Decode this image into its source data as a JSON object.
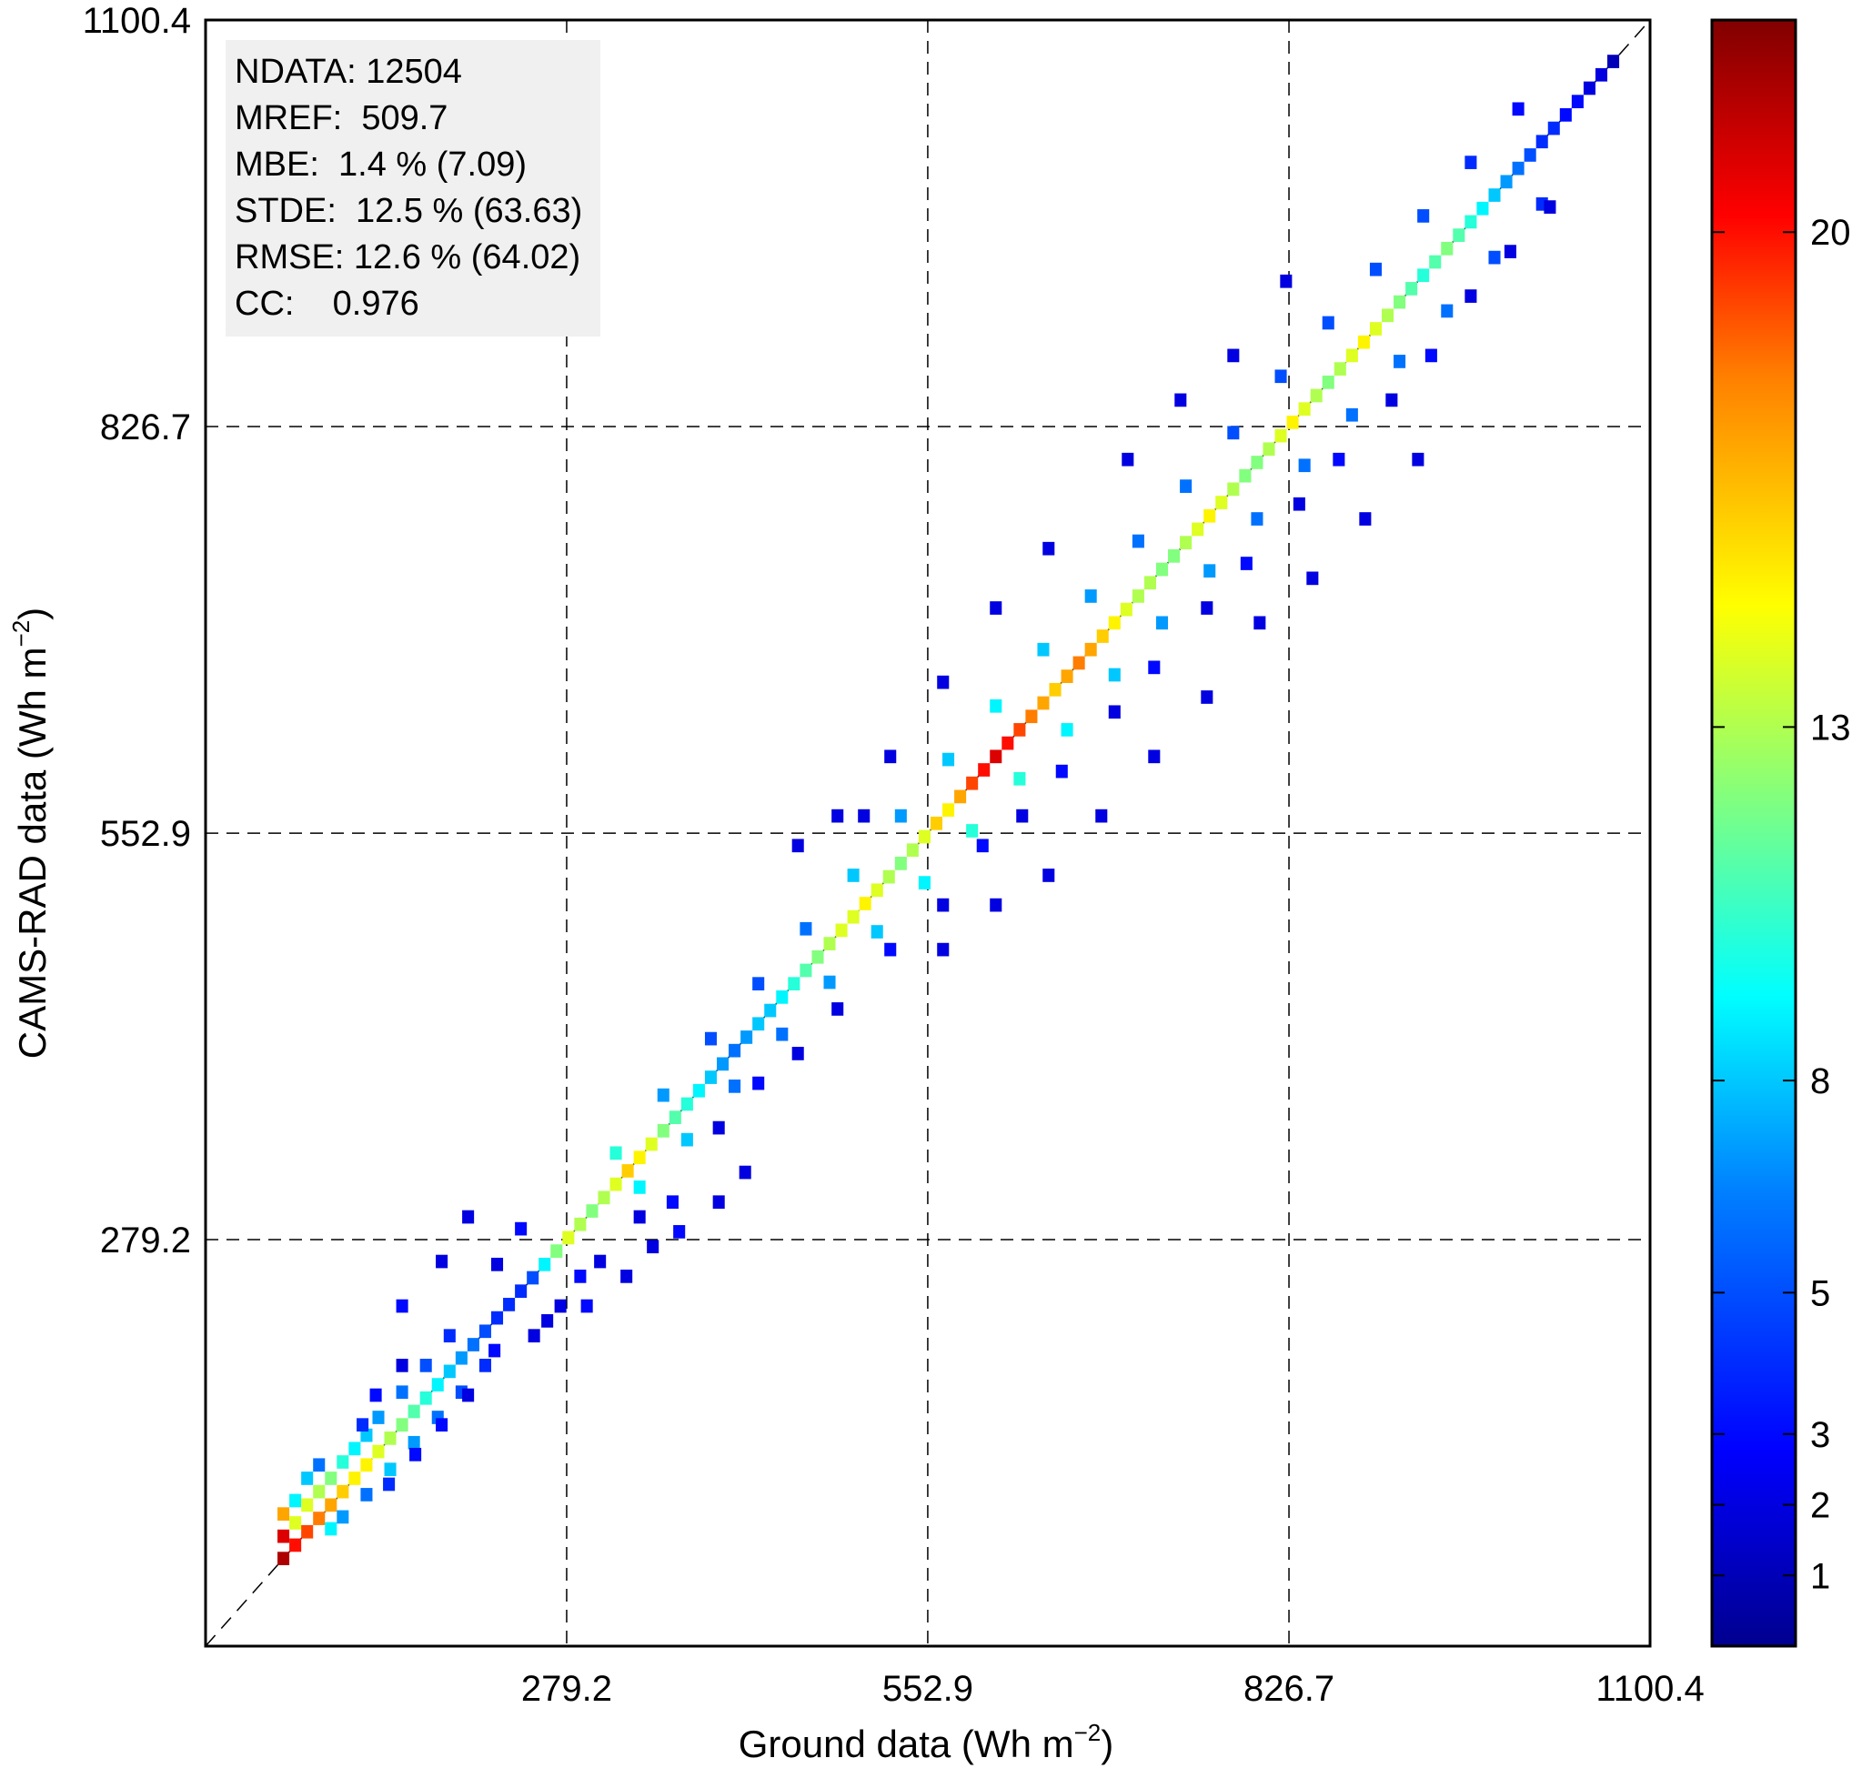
{
  "chart_data": {
    "type": "heatmap",
    "title": "",
    "xlabel_main": "Ground data (Wh m",
    "xlabel_sup": "−2",
    "xlabel_end": ")",
    "ylabel_main": "CAMS-RAD data  (Wh m",
    "ylabel_sup": "−2",
    "ylabel_end": ")",
    "xlim": [
      5.5,
      1100.4
    ],
    "ylim": [
      5.5,
      1100.4
    ],
    "x_ticks": [
      279.2,
      552.9,
      826.7,
      1100.4
    ],
    "x_tick_labels": [
      "279.2",
      "552.9",
      "826.7",
      "1100.4"
    ],
    "y_ticks": [
      279.2,
      552.9,
      826.7,
      1100.4
    ],
    "y_tick_labels": [
      "279.2",
      "552.9",
      "826.7",
      "1100.4"
    ],
    "grid": true,
    "grid_style": "dashed",
    "identity_line": true,
    "bin_width": 9.0,
    "stats": [
      "NDATA: 12504",
      "MREF:  509.7",
      "MBE:  1.4 % (7.09)",
      "STDE:  12.5 % (63.63)",
      "RMSE: 12.6 % (64.02)",
      "CC:    0.976"
    ],
    "colorbar": {
      "min": 0,
      "max": 23,
      "ticks": [
        1,
        2,
        3,
        5,
        8,
        13,
        20
      ],
      "tick_labels": [
        "1",
        "2",
        "3",
        "5",
        "8",
        "13",
        "20"
      ],
      "colors": [
        "#00008f",
        "#0000ff",
        "#0080ff",
        "#00ffff",
        "#80ff80",
        "#ffff00",
        "#ff8000",
        "#ff0000",
        "#800000"
      ]
    },
    "points": [
      [
        60,
        60,
        22
      ],
      [
        60,
        75,
        21
      ],
      [
        60,
        90,
        17
      ],
      [
        69,
        69,
        20
      ],
      [
        69,
        84,
        14
      ],
      [
        69,
        99,
        9
      ],
      [
        78,
        78,
        19
      ],
      [
        78,
        96,
        14
      ],
      [
        78,
        114,
        8
      ],
      [
        87,
        87,
        18
      ],
      [
        87,
        105,
        13
      ],
      [
        87,
        123,
        6
      ],
      [
        96,
        96,
        17
      ],
      [
        96,
        114,
        12
      ],
      [
        96,
        80,
        9
      ],
      [
        105,
        105,
        16
      ],
      [
        105,
        125,
        10
      ],
      [
        105,
        88,
        7
      ],
      [
        114,
        114,
        15
      ],
      [
        114,
        134,
        9
      ],
      [
        123,
        123,
        15
      ],
      [
        123,
        143,
        8
      ],
      [
        123,
        103,
        6
      ],
      [
        132,
        132,
        14
      ],
      [
        132,
        155,
        7
      ],
      [
        141,
        141,
        13
      ],
      [
        141,
        120,
        8
      ],
      [
        150,
        150,
        12
      ],
      [
        150,
        172,
        6
      ],
      [
        159,
        159,
        11
      ],
      [
        159,
        138,
        7
      ],
      [
        168,
        168,
        10
      ],
      [
        168,
        190,
        5
      ],
      [
        177,
        177,
        9
      ],
      [
        177,
        155,
        6
      ],
      [
        186,
        186,
        8
      ],
      [
        186,
        210,
        4
      ],
      [
        195,
        195,
        7
      ],
      [
        195,
        172,
        5
      ],
      [
        204,
        204,
        6
      ],
      [
        213,
        213,
        5
      ],
      [
        213,
        190,
        4
      ],
      [
        222,
        222,
        4
      ],
      [
        231,
        231,
        4
      ],
      [
        240,
        240,
        4
      ],
      [
        249,
        249,
        5
      ],
      [
        258,
        258,
        9
      ],
      [
        267,
        267,
        12
      ],
      [
        276,
        276,
        14
      ],
      [
        285,
        285,
        13
      ],
      [
        294,
        294,
        12
      ],
      [
        303,
        303,
        13
      ],
      [
        312,
        312,
        14
      ],
      [
        321,
        321,
        16
      ],
      [
        330,
        330,
        15
      ],
      [
        339,
        339,
        14
      ],
      [
        348,
        348,
        12
      ],
      [
        357,
        357,
        11
      ],
      [
        366,
        366,
        10
      ],
      [
        375,
        375,
        9
      ],
      [
        384,
        384,
        8
      ],
      [
        393,
        393,
        7
      ],
      [
        402,
        402,
        6
      ],
      [
        411,
        411,
        7
      ],
      [
        420,
        420,
        8
      ],
      [
        429,
        429,
        8
      ],
      [
        438,
        438,
        9
      ],
      [
        447,
        447,
        10
      ],
      [
        456,
        456,
        11
      ],
      [
        465,
        465,
        12
      ],
      [
        474,
        474,
        13
      ],
      [
        483,
        483,
        14
      ],
      [
        492,
        492,
        14
      ],
      [
        501,
        501,
        15
      ],
      [
        510,
        510,
        14
      ],
      [
        519,
        519,
        13
      ],
      [
        528,
        528,
        12
      ],
      [
        537,
        537,
        13
      ],
      [
        546,
        546,
        14
      ],
      [
        555,
        555,
        16
      ],
      [
        564,
        564,
        15
      ],
      [
        573,
        573,
        17
      ],
      [
        582,
        582,
        19
      ],
      [
        591,
        591,
        20
      ],
      [
        600,
        600,
        21
      ],
      [
        609,
        609,
        20
      ],
      [
        618,
        618,
        19
      ],
      [
        627,
        627,
        18
      ],
      [
        636,
        636,
        17
      ],
      [
        645,
        645,
        16
      ],
      [
        654,
        654,
        17
      ],
      [
        663,
        663,
        18
      ],
      [
        672,
        672,
        17
      ],
      [
        681,
        681,
        16
      ],
      [
        690,
        690,
        15
      ],
      [
        699,
        699,
        14
      ],
      [
        708,
        708,
        13
      ],
      [
        717,
        717,
        13
      ],
      [
        726,
        726,
        12
      ],
      [
        735,
        735,
        12
      ],
      [
        744,
        744,
        13
      ],
      [
        753,
        753,
        14
      ],
      [
        762,
        762,
        15
      ],
      [
        771,
        771,
        14
      ],
      [
        780,
        780,
        13
      ],
      [
        789,
        789,
        12
      ],
      [
        798,
        798,
        12
      ],
      [
        807,
        807,
        13
      ],
      [
        816,
        816,
        14
      ],
      [
        825,
        825,
        15
      ],
      [
        834,
        834,
        14
      ],
      [
        843,
        843,
        13
      ],
      [
        852,
        852,
        12
      ],
      [
        861,
        861,
        13
      ],
      [
        870,
        870,
        14
      ],
      [
        879,
        879,
        15
      ],
      [
        888,
        888,
        14
      ],
      [
        897,
        897,
        13
      ],
      [
        906,
        906,
        12
      ],
      [
        915,
        915,
        11
      ],
      [
        924,
        924,
        10
      ],
      [
        933,
        933,
        11
      ],
      [
        942,
        942,
        12
      ],
      [
        951,
        951,
        11
      ],
      [
        960,
        960,
        10
      ],
      [
        969,
        969,
        9
      ],
      [
        978,
        978,
        8
      ],
      [
        987,
        987,
        7
      ],
      [
        996,
        996,
        6
      ],
      [
        1005,
        1005,
        5
      ],
      [
        1014,
        1014,
        4
      ],
      [
        1023,
        1023,
        4
      ],
      [
        1032,
        1032,
        3
      ],
      [
        1041,
        1041,
        3
      ],
      [
        1050,
        1050,
        2
      ],
      [
        1059,
        1059,
        2
      ],
      [
        1068,
        1068,
        1
      ],
      [
        312,
        333,
        10
      ],
      [
        330,
        310,
        9
      ],
      [
        348,
        372,
        7
      ],
      [
        366,
        342,
        8
      ],
      [
        384,
        410,
        5
      ],
      [
        402,
        378,
        6
      ],
      [
        420,
        447,
        5
      ],
      [
        438,
        413,
        6
      ],
      [
        456,
        484,
        6
      ],
      [
        474,
        448,
        7
      ],
      [
        492,
        520,
        8
      ],
      [
        510,
        482,
        8
      ],
      [
        528,
        560,
        7
      ],
      [
        546,
        515,
        9
      ],
      [
        564,
        598,
        8
      ],
      [
        582,
        550,
        10
      ],
      [
        600,
        634,
        9
      ],
      [
        618,
        585,
        10
      ],
      [
        636,
        672,
        8
      ],
      [
        654,
        618,
        9
      ],
      [
        672,
        708,
        7
      ],
      [
        690,
        655,
        8
      ],
      [
        708,
        745,
        6
      ],
      [
        726,
        690,
        7
      ],
      [
        744,
        782,
        6
      ],
      [
        762,
        725,
        7
      ],
      [
        780,
        818,
        5
      ],
      [
        798,
        760,
        6
      ],
      [
        816,
        856,
        5
      ],
      [
        834,
        796,
        6
      ],
      [
        852,
        892,
        5
      ],
      [
        870,
        830,
        6
      ],
      [
        888,
        928,
        5
      ],
      [
        906,
        866,
        6
      ],
      [
        924,
        964,
        5
      ],
      [
        942,
        900,
        6
      ],
      [
        960,
        1000,
        4
      ],
      [
        978,
        936,
        5
      ],
      [
        996,
        1036,
        3
      ],
      [
        1014,
        972,
        4
      ],
      [
        240,
        282,
        3
      ],
      [
        222,
        258,
        2
      ],
      [
        285,
        250,
        3
      ],
      [
        300,
        260,
        2
      ],
      [
        330,
        290,
        2
      ],
      [
        355,
        300,
        3
      ],
      [
        390,
        350,
        2
      ],
      [
        420,
        380,
        3
      ],
      [
        450,
        400,
        2
      ],
      [
        480,
        430,
        2
      ],
      [
        500,
        560,
        2
      ],
      [
        520,
        470,
        3
      ],
      [
        560,
        500,
        2
      ],
      [
        590,
        540,
        3
      ],
      [
        620,
        560,
        2
      ],
      [
        650,
        590,
        3
      ],
      [
        690,
        630,
        2
      ],
      [
        720,
        660,
        3
      ],
      [
        760,
        700,
        2
      ],
      [
        790,
        730,
        3
      ],
      [
        830,
        770,
        2
      ],
      [
        860,
        800,
        3
      ],
      [
        900,
        840,
        2
      ],
      [
        930,
        870,
        3
      ],
      [
        960,
        910,
        2
      ],
      [
        990,
        940,
        2
      ],
      [
        1020,
        970,
        2
      ],
      [
        450,
        540,
        2
      ],
      [
        480,
        560,
        2
      ],
      [
        520,
        600,
        2
      ],
      [
        560,
        650,
        2
      ],
      [
        600,
        700,
        2
      ],
      [
        640,
        740,
        2
      ],
      [
        700,
        800,
        2
      ],
      [
        740,
        840,
        2
      ],
      [
        780,
        870,
        2
      ],
      [
        820,
        920,
        2
      ],
      [
        560,
        470,
        2
      ],
      [
        600,
        500,
        2
      ],
      [
        640,
        520,
        2
      ],
      [
        680,
        560,
        2
      ],
      [
        720,
        600,
        2
      ],
      [
        760,
        640,
        2
      ],
      [
        800,
        690,
        2
      ],
      [
        840,
        720,
        2
      ],
      [
        880,
        760,
        2
      ],
      [
        920,
        800,
        2
      ],
      [
        180,
        260,
        2
      ],
      [
        150,
        230,
        3
      ],
      [
        200,
        290,
        2
      ],
      [
        260,
        220,
        2
      ],
      [
        290,
        230,
        3
      ],
      [
        320,
        250,
        2
      ],
      [
        340,
        270,
        2
      ],
      [
        360,
        280,
        3
      ],
      [
        390,
        300,
        2
      ],
      [
        410,
        320,
        2
      ],
      [
        140,
        110,
        4
      ],
      [
        160,
        130,
        3
      ],
      [
        180,
        150,
        3
      ],
      [
        200,
        170,
        2
      ],
      [
        220,
        200,
        3
      ],
      [
        250,
        210,
        2
      ],
      [
        270,
        230,
        2
      ],
      [
        120,
        150,
        4
      ],
      [
        130,
        170,
        3
      ],
      [
        150,
        190,
        2
      ]
    ]
  }
}
